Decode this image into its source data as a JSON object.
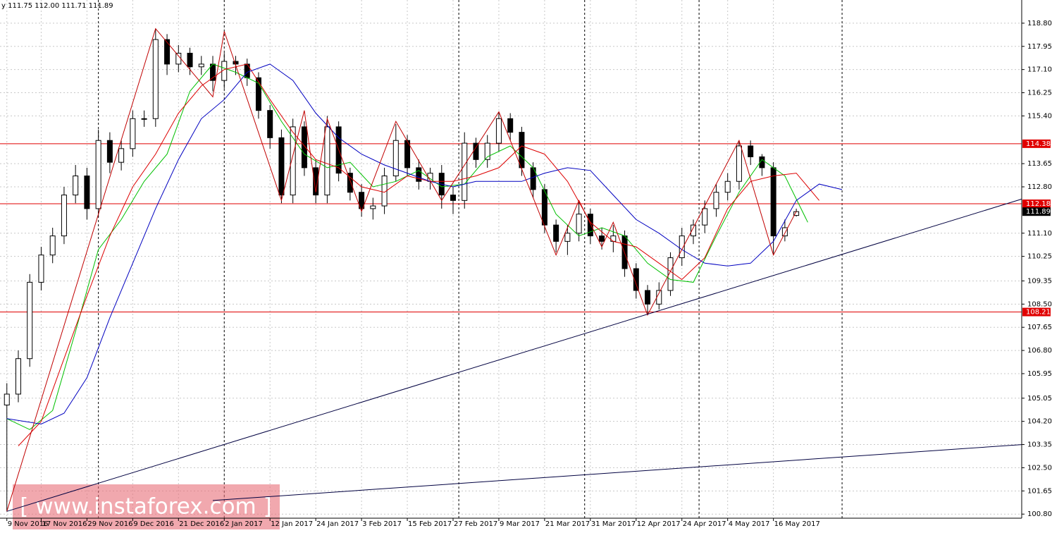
{
  "chart_data": {
    "type": "candlestick",
    "header": "y  111.75 112.00 111.71 111.89",
    "watermark": "[ www.instaforex.com ]",
    "x": [
      0,
      2,
      4,
      6,
      8,
      10,
      12,
      14,
      16,
      18,
      20,
      22,
      24,
      26,
      28,
      30,
      32,
      34,
      36,
      38,
      40,
      42,
      44,
      46,
      48,
      50,
      52,
      54,
      56,
      58,
      60,
      62,
      64,
      66,
      68,
      70,
      72,
      74,
      76,
      78,
      80,
      82,
      84,
      86,
      88,
      90,
      92,
      94,
      96,
      98,
      100,
      102,
      104,
      106,
      108,
      110,
      112,
      114,
      116,
      118,
      120,
      122,
      124,
      126,
      128,
      130,
      132,
      134,
      136,
      138
    ],
    "open": [
      104.8,
      105.2,
      106.5,
      109.3,
      110.3,
      111.0,
      112.5,
      113.2,
      112.0,
      114.5,
      113.7,
      114.2,
      115.3,
      115.3,
      118.2,
      117.3,
      117.7,
      117.2,
      117.3,
      116.7,
      117.4,
      117.3,
      116.8,
      115.6,
      114.6,
      112.5,
      115.0,
      113.5,
      112.5,
      115.0,
      113.3,
      112.6,
      112.0,
      112.1,
      113.2,
      114.5,
      113.5,
      113.0,
      113.3,
      112.5,
      112.3,
      114.4,
      113.8,
      114.4,
      115.3,
      114.8,
      113.5,
      112.7,
      111.4,
      110.8,
      111.1,
      111.8,
      111.0,
      110.8,
      111.0,
      109.8,
      109.0,
      108.5,
      109.0,
      110.2,
      111.0,
      111.4,
      112.0,
      112.6,
      113.0,
      114.3,
      113.9,
      113.5,
      111.0,
      111.75
    ],
    "high": [
      105.6,
      106.8,
      109.6,
      110.6,
      111.3,
      112.8,
      113.6,
      113.5,
      114.9,
      114.8,
      114.5,
      115.6,
      115.6,
      118.6,
      118.4,
      118.0,
      117.9,
      117.6,
      117.6,
      117.7,
      117.6,
      117.5,
      117.0,
      115.8,
      114.9,
      115.3,
      115.2,
      113.8,
      115.4,
      115.2,
      113.5,
      112.9,
      112.4,
      113.5,
      115.1,
      114.7,
      113.8,
      113.5,
      113.6,
      112.8,
      114.8,
      114.6,
      114.7,
      115.55,
      115.5,
      115.0,
      113.7,
      112.9,
      111.6,
      111.4,
      112.3,
      112.0,
      111.3,
      111.4,
      111.2,
      110.0,
      109.2,
      109.3,
      110.4,
      111.3,
      111.6,
      112.3,
      112.9,
      113.3,
      114.5,
      114.5,
      114.0,
      113.7,
      111.6,
      112.0
    ],
    "low": [
      100.9,
      104.9,
      106.2,
      109.0,
      110.0,
      110.7,
      112.2,
      111.6,
      111.7,
      113.3,
      113.4,
      113.9,
      115.0,
      115.0,
      116.9,
      117.0,
      116.9,
      116.9,
      116.3,
      116.4,
      116.9,
      116.5,
      115.3,
      114.2,
      112.2,
      112.2,
      113.2,
      112.2,
      112.2,
      113.0,
      112.3,
      111.7,
      111.6,
      111.8,
      113.0,
      113.2,
      112.7,
      112.7,
      112.0,
      111.8,
      112.0,
      113.5,
      113.5,
      114.1,
      114.5,
      113.2,
      112.4,
      111.1,
      110.4,
      110.3,
      110.8,
      110.7,
      110.5,
      110.4,
      109.5,
      108.7,
      108.1,
      108.3,
      108.8,
      109.9,
      110.7,
      111.1,
      111.7,
      112.3,
      112.7,
      113.6,
      113.2,
      110.3,
      110.8,
      111.71
    ],
    "close": [
      105.2,
      106.5,
      109.3,
      110.3,
      111.0,
      112.5,
      113.2,
      112.0,
      114.5,
      113.7,
      114.2,
      115.3,
      115.3,
      118.2,
      117.3,
      117.7,
      117.2,
      117.3,
      116.7,
      117.4,
      117.3,
      116.8,
      115.6,
      114.6,
      112.5,
      115.0,
      113.5,
      112.5,
      115.0,
      113.3,
      112.6,
      112.0,
      112.1,
      113.2,
      114.5,
      113.5,
      113.0,
      113.3,
      112.5,
      112.3,
      114.4,
      113.8,
      114.4,
      115.3,
      114.8,
      113.5,
      112.7,
      111.4,
      110.8,
      111.1,
      111.8,
      111.0,
      110.8,
      111.0,
      109.8,
      109.0,
      108.5,
      109.0,
      110.2,
      111.0,
      111.4,
      112.0,
      112.6,
      113.0,
      114.3,
      113.9,
      113.5,
      111.0,
      111.3,
      111.89
    ],
    "xlim": [
      -1.2,
      177.4
    ],
    "ylim": [
      100.65,
      119.65
    ],
    "xticks": [
      {
        "value": 0,
        "label": "9 Nov 2016"
      },
      {
        "value": 6,
        "label": "17 Nov 2016"
      },
      {
        "value": 14,
        "label": "29 Nov 2016"
      },
      {
        "value": 22,
        "label": "9 Dec 2016"
      },
      {
        "value": 30,
        "label": "21 Dec 2016"
      },
      {
        "value": 38,
        "label": "2 Jan 2017"
      },
      {
        "value": 46,
        "label": "12 Jan 2017"
      },
      {
        "value": 54,
        "label": "24 Jan 2017"
      },
      {
        "value": 62,
        "label": "3 Feb 2017"
      },
      {
        "value": 70,
        "label": "15 Feb 2017"
      },
      {
        "value": 78,
        "label": "27 Feb 2017"
      },
      {
        "value": 86,
        "label": "9 Mar 2017"
      },
      {
        "value": 94,
        "label": "21 Mar 2017"
      },
      {
        "value": 102,
        "label": "31 Mar 2017"
      },
      {
        "value": 110,
        "label": "12 Apr 2017"
      },
      {
        "value": 118,
        "label": "24 Apr 2017"
      },
      {
        "value": 126,
        "label": "4 May 2017"
      },
      {
        "value": 134,
        "label": "16 May 2017"
      }
    ],
    "yticks": [
      {
        "value": 118.8,
        "label": "118.80"
      },
      117.95,
      {
        "value": 117.1,
        "label": "117.10"
      },
      116.25,
      {
        "value": 115.4,
        "label": "115.40"
      },
      113.65,
      {
        "value": 112.8,
        "label": "112.80"
      },
      {
        "value": 111.1,
        "label": "111.10"
      },
      110.25,
      109.35,
      {
        "value": 108.5,
        "label": "108.50"
      },
      107.65,
      {
        "value": 106.8,
        "label": "106.80"
      },
      105.95,
      105.05,
      {
        "value": 104.2,
        "label": "104.20"
      },
      103.35,
      {
        "value": 102.5,
        "label": "102.50"
      },
      101.65,
      {
        "value": 100.8,
        "label": "100.80"
      }
    ],
    "grid": true,
    "overlays": [
      {
        "color": "#00c000",
        "x": [
          0,
          4,
          8,
          12,
          16,
          20,
          24,
          28,
          32,
          36,
          40,
          44,
          48,
          52,
          56,
          60,
          64,
          68,
          72,
          76,
          80,
          84,
          88,
          92,
          96,
          100,
          104,
          108,
          112,
          116,
          120,
          124,
          128,
          132,
          136,
          140
        ],
        "values": [
          104.3,
          103.9,
          104.6,
          107.5,
          110.5,
          111.6,
          113.0,
          114.0,
          116.3,
          117.3,
          117.0,
          116.6,
          115.2,
          114.0,
          113.5,
          113.7,
          112.8,
          113.0,
          113.4,
          112.8,
          112.9,
          113.9,
          114.3,
          113.5,
          111.8,
          111.0,
          111.3,
          111.0,
          110.0,
          109.4,
          109.3,
          111.0,
          112.6,
          113.8,
          113.2,
          111.5
        ]
      },
      {
        "color": "#dd0000",
        "x": [
          2,
          6,
          10,
          14,
          18,
          22,
          26,
          30,
          34,
          38,
          42,
          46,
          50,
          54,
          58,
          62,
          66,
          70,
          74,
          78,
          82,
          86,
          90,
          94,
          98,
          102,
          106,
          110,
          114,
          118,
          122,
          126,
          130,
          134,
          138,
          142
        ],
        "values": [
          103.3,
          104.2,
          106.5,
          108.8,
          111.0,
          112.8,
          114.0,
          115.5,
          116.5,
          117.1,
          117.3,
          116.0,
          114.8,
          113.8,
          113.5,
          112.8,
          112.6,
          113.2,
          113.0,
          113.0,
          113.2,
          113.5,
          114.3,
          114.0,
          113.0,
          111.5,
          110.8,
          110.6,
          110.0,
          109.4,
          110.2,
          112.0,
          113.0,
          113.2,
          113.3,
          112.3
        ]
      },
      {
        "color": "#0000c0",
        "x": [
          0,
          6,
          10,
          14,
          18,
          22,
          26,
          30,
          34,
          38,
          42,
          46,
          50,
          54,
          58,
          62,
          66,
          70,
          74,
          78,
          82,
          86,
          90,
          94,
          98,
          102,
          106,
          110,
          114,
          118,
          122,
          126,
          130,
          134,
          138,
          142,
          146
        ],
        "values": [
          104.3,
          104.1,
          104.5,
          105.8,
          108.0,
          110.0,
          112.0,
          113.8,
          115.3,
          116.0,
          117.0,
          117.3,
          116.7,
          115.5,
          114.6,
          114.0,
          113.6,
          113.3,
          113.0,
          112.8,
          113.0,
          113.0,
          113.0,
          113.3,
          113.5,
          113.4,
          112.5,
          111.6,
          111.1,
          110.5,
          110.0,
          109.9,
          110.0,
          110.8,
          112.3,
          112.9,
          112.7
        ]
      },
      {
        "color": "#c00000",
        "x": [
          0,
          26,
          36,
          38,
          48,
          52,
          54,
          56,
          62,
          68,
          76,
          86,
          96,
          100,
          104,
          106,
          112,
          128,
          134,
          138
        ],
        "values": [
          100.9,
          118.6,
          116.1,
          118.5,
          112.3,
          115.6,
          112.6,
          115.3,
          111.9,
          115.2,
          112.3,
          115.55,
          110.3,
          112.3,
          110.6,
          111.5,
          108.1,
          114.5,
          110.3,
          111.9
        ]
      },
      {
        "color": "#000040",
        "x": [
          0,
          177.4
        ],
        "values": [
          100.9,
          112.35
        ]
      },
      {
        "color": "#000040",
        "x": [
          36,
          177.4
        ],
        "values": [
          101.3,
          103.35
        ]
      }
    ],
    "separators": [
      16,
      38,
      79,
      101,
      121,
      146
    ],
    "hlines": [
      {
        "value": 114.38,
        "color": "#e00000"
      },
      {
        "value": 112.18,
        "color": "#e00000"
      },
      {
        "value": 108.21,
        "color": "#e00000"
      }
    ],
    "last_price": 111.89
  }
}
